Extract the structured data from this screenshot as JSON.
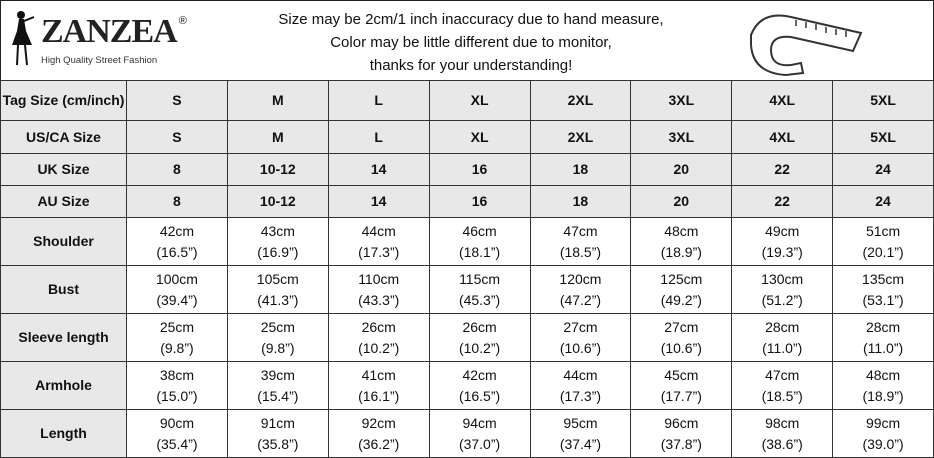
{
  "header": {
    "brand": "ZANZEA",
    "registered": "®",
    "tagline": "High Quality Street Fashion",
    "notice": [
      "Size may be 2cm/1 inch inaccuracy due to hand measure,",
      "Color may be little different due to monitor,",
      "thanks for your understanding!"
    ]
  },
  "table": {
    "size_rows": [
      {
        "label": "Tag Size (cm/inch)",
        "values": [
          "S",
          "M",
          "L",
          "XL",
          "2XL",
          "3XL",
          "4XL",
          "5XL"
        ]
      },
      {
        "label": "US/CA Size",
        "values": [
          "S",
          "M",
          "L",
          "XL",
          "2XL",
          "3XL",
          "4XL",
          "5XL"
        ]
      },
      {
        "label": "UK Size",
        "values": [
          "8",
          "10-12",
          "14",
          "16",
          "18",
          "20",
          "22",
          "24"
        ]
      },
      {
        "label": "AU Size",
        "values": [
          "8",
          "10-12",
          "14",
          "16",
          "18",
          "20",
          "22",
          "24"
        ]
      }
    ],
    "measure_rows": [
      {
        "label": "Shoulder",
        "cm": [
          "42cm",
          "43cm",
          "44cm",
          "46cm",
          "47cm",
          "48cm",
          "49cm",
          "51cm"
        ],
        "inch": [
          "(16.5”)",
          "(16.9”)",
          "(17.3”)",
          "(18.1”)",
          "(18.5”)",
          "(18.9”)",
          "(19.3”)",
          "(20.1”)"
        ]
      },
      {
        "label": "Bust",
        "cm": [
          "100cm",
          "105cm",
          "110cm",
          "115cm",
          "120cm",
          "125cm",
          "130cm",
          "135cm"
        ],
        "inch": [
          "(39.4”)",
          "(41.3”)",
          "(43.3”)",
          "(45.3”)",
          "(47.2”)",
          "(49.2”)",
          "(51.2”)",
          "(53.1”)"
        ]
      },
      {
        "label": "Sleeve length",
        "cm": [
          "25cm",
          "25cm",
          "26cm",
          "26cm",
          "27cm",
          "27cm",
          "28cm",
          "28cm"
        ],
        "inch": [
          "(9.8”)",
          "(9.8”)",
          "(10.2”)",
          "(10.2”)",
          "(10.6”)",
          "(10.6”)",
          "(11.0”)",
          "(11.0”)"
        ]
      },
      {
        "label": "Armhole",
        "cm": [
          "38cm",
          "39cm",
          "41cm",
          "42cm",
          "44cm",
          "45cm",
          "47cm",
          "48cm"
        ],
        "inch": [
          "(15.0”)",
          "(15.4”)",
          "(16.1”)",
          "(16.5”)",
          "(17.3”)",
          "(17.7”)",
          "(18.5”)",
          "(18.9”)"
        ]
      },
      {
        "label": "Length",
        "cm": [
          "90cm",
          "91cm",
          "92cm",
          "94cm",
          "95cm",
          "96cm",
          "98cm",
          "99cm"
        ],
        "inch": [
          "(35.4”)",
          "(35.8”)",
          "(36.2”)",
          "(37.0”)",
          "(37.4”)",
          "(37.8”)",
          "(38.6”)",
          "(39.0”)"
        ]
      }
    ]
  }
}
